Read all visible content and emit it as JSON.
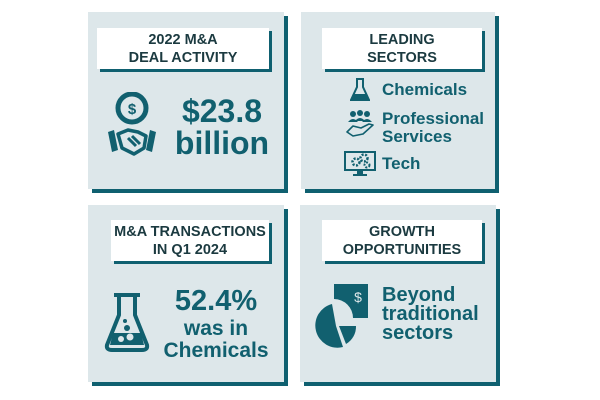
{
  "panels": {
    "deal_activity": {
      "title_line1": "2022 M&A",
      "title_line2": "DEAL ACTIVITY",
      "value": "$23.8",
      "unit": "billion",
      "icon": "handshake-dollar-icon"
    },
    "leading_sectors": {
      "title_line1": "LEADING",
      "title_line2": "SECTORS",
      "items": [
        {
          "label_line1": "Chemicals",
          "label_line2": "",
          "icon": "flask-icon"
        },
        {
          "label_line1": "Professional",
          "label_line2": "Services",
          "icon": "people-hand-icon"
        },
        {
          "label_line1": "Tech",
          "label_line2": "",
          "icon": "monitor-gears-icon"
        }
      ]
    },
    "transactions": {
      "title_line1": "M&A TRANSACTIONS",
      "title_line2": "IN Q1 2024",
      "value": "52.4%",
      "line2": "was in",
      "line3": "Chemicals",
      "icon": "flask-icon"
    },
    "growth": {
      "title_line1": "GROWTH",
      "title_line2": "OPPORTUNITIES",
      "line1": "Beyond",
      "line2": "traditional",
      "line3": "sectors",
      "icon": "pie-chart-dollar-icon"
    }
  },
  "colors": {
    "panel_bg": "#dde7ea",
    "accent": "#11606f",
    "shadow": "#0f6070",
    "title_text": "#1b3a40"
  }
}
